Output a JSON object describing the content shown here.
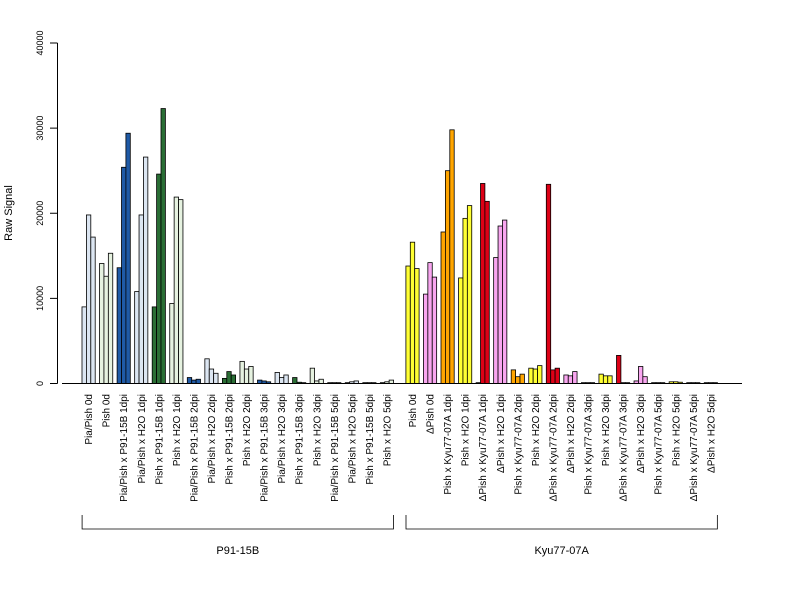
{
  "chart_data": {
    "type": "bar",
    "ylabel": "Raw Signal",
    "ylim": [
      0,
      40000
    ],
    "yticks": [
      "0",
      "10000",
      "20000",
      "30000",
      "40000"
    ],
    "groups": [
      {
        "label": "P91-15B",
        "categories": [
          {
            "label": "Pia/Pish 0d",
            "color": "#dce6f2",
            "values": [
              9000,
              19800,
              17200
            ]
          },
          {
            "label": "Pish 0d",
            "color": "#e6f2e0",
            "values": [
              14100,
              12600,
              15300
            ]
          },
          {
            "label": "Pia/Pish x P91-15B 1dpi",
            "color": "#1f5aa6",
            "values": [
              13600,
              25400,
              29400
            ]
          },
          {
            "label": "Pia/Pish x H2O 1dpi",
            "color": "#dce6f2",
            "values": [
              10800,
              19800,
              26600
            ]
          },
          {
            "label": "Pish x P91-15B 1dpi",
            "color": "#2a6e35",
            "values": [
              9000,
              24600,
              32300
            ]
          },
          {
            "label": "Pish x H2O 1dpi",
            "color": "#e6f2e0",
            "values": [
              9400,
              21900,
              21600
            ]
          },
          {
            "label": "Pia/Pish x P91-15B 2dpi",
            "color": "#1f5aa6",
            "values": [
              700,
              400,
              500
            ]
          },
          {
            "label": "Pia/Pish x H2O 2dpi",
            "color": "#dce6f2",
            "values": [
              2900,
              1700,
              1200
            ]
          },
          {
            "label": "Pish x P91-15B 2dpi",
            "color": "#2a6e35",
            "values": [
              600,
              1400,
              1000
            ]
          },
          {
            "label": "Pish x H2O 2dpi",
            "color": "#e6f2e0",
            "values": [
              2600,
              1700,
              2000
            ]
          },
          {
            "label": "Pia/Pish x P91-15B 3dpi",
            "color": "#1f5aa6",
            "values": [
              400,
              300,
              200
            ]
          },
          {
            "label": "Pia/Pish x H2O 3dpi",
            "color": "#dce6f2",
            "values": [
              1300,
              700,
              1000
            ]
          },
          {
            "label": "Pish x P91-15B 3dpi",
            "color": "#2a6e35",
            "values": [
              700,
              150,
              100
            ]
          },
          {
            "label": "Pish x H2O 3dpi",
            "color": "#e6f2e0",
            "values": [
              1800,
              300,
              500
            ]
          },
          {
            "label": "Pia/Pish x P91-15B 5dpi",
            "color": "#1f5aa6",
            "values": [
              100,
              100,
              100
            ]
          },
          {
            "label": "Pia/Pish x H2O 5dpi",
            "color": "#dce6f2",
            "values": [
              100,
              200,
              300
            ]
          },
          {
            "label": "Pish x P91-15B 5dpi",
            "color": "#2a6e35",
            "values": [
              100,
              100,
              100
            ]
          },
          {
            "label": "Pish x H2O 5dpi",
            "color": "#e6f2e0",
            "values": [
              100,
              200,
              400
            ]
          }
        ]
      },
      {
        "label": "Kyu77-07A",
        "categories": [
          {
            "label": "Pish 0d",
            "color": "#ffff33",
            "values": [
              13800,
              16600,
              13500
            ]
          },
          {
            "label": "ΔPish 0d",
            "color": "#f9a6f0",
            "values": [
              10500,
              14200,
              12500
            ]
          },
          {
            "label": "Pish x Kyu77-07A 1dpi",
            "color": "#ffa500",
            "values": [
              17800,
              25000,
              29800
            ]
          },
          {
            "label": "Pish x H2O 1dpi",
            "color": "#ffff33",
            "values": [
              12400,
              19400,
              20900
            ]
          },
          {
            "label": "ΔPish x Kyu77-07A 1dpi",
            "color": "#dd0016",
            "values": [
              100,
              23500,
              21400
            ]
          },
          {
            "label": "ΔPish x H2O 1dpi",
            "color": "#f9a6f0",
            "values": [
              14800,
              18500,
              19200
            ]
          },
          {
            "label": "Pish x Kyu77-07A 2dpi",
            "color": "#ffa500",
            "values": [
              1600,
              800,
              1100
            ]
          },
          {
            "label": "Pish x H2O 2dpi",
            "color": "#ffff33",
            "values": [
              1800,
              1700,
              2100
            ]
          },
          {
            "label": "ΔPish x Kyu77-07A 2dpi",
            "color": "#dd0016",
            "values": [
              23400,
              1600,
              1800
            ]
          },
          {
            "label": "ΔPish x H2O 2dpi",
            "color": "#f9a6f0",
            "values": [
              1000,
              900,
              1400
            ]
          },
          {
            "label": "Pish x Kyu77-07A 3dpi",
            "color": "#ffa500",
            "values": [
              100,
              100,
              100
            ]
          },
          {
            "label": "Pish x H2O 3dpi",
            "color": "#ffff33",
            "values": [
              1100,
              900,
              900
            ]
          },
          {
            "label": "ΔPish x Kyu77-07A 3dpi",
            "color": "#dd0016",
            "values": [
              3300,
              100,
              100
            ]
          },
          {
            "label": "ΔPish x H2O 3dpi",
            "color": "#f9a6f0",
            "values": [
              300,
              2000,
              800
            ]
          },
          {
            "label": "Pish x Kyu77-07A 5dpi",
            "color": "#ffa500",
            "values": [
              100,
              100,
              100
            ]
          },
          {
            "label": "Pish x H2O 5dpi",
            "color": "#ffff33",
            "values": [
              200,
              200,
              150
            ]
          },
          {
            "label": "ΔPish x Kyu77-07A 5dpi",
            "color": "#dd0016",
            "values": [
              100,
              100,
              100
            ]
          },
          {
            "label": "ΔPish x H2O 5dpi",
            "color": "#f9a6f0",
            "values": [
              100,
              100,
              100
            ]
          }
        ]
      }
    ],
    "grid": false,
    "legend": "none"
  }
}
